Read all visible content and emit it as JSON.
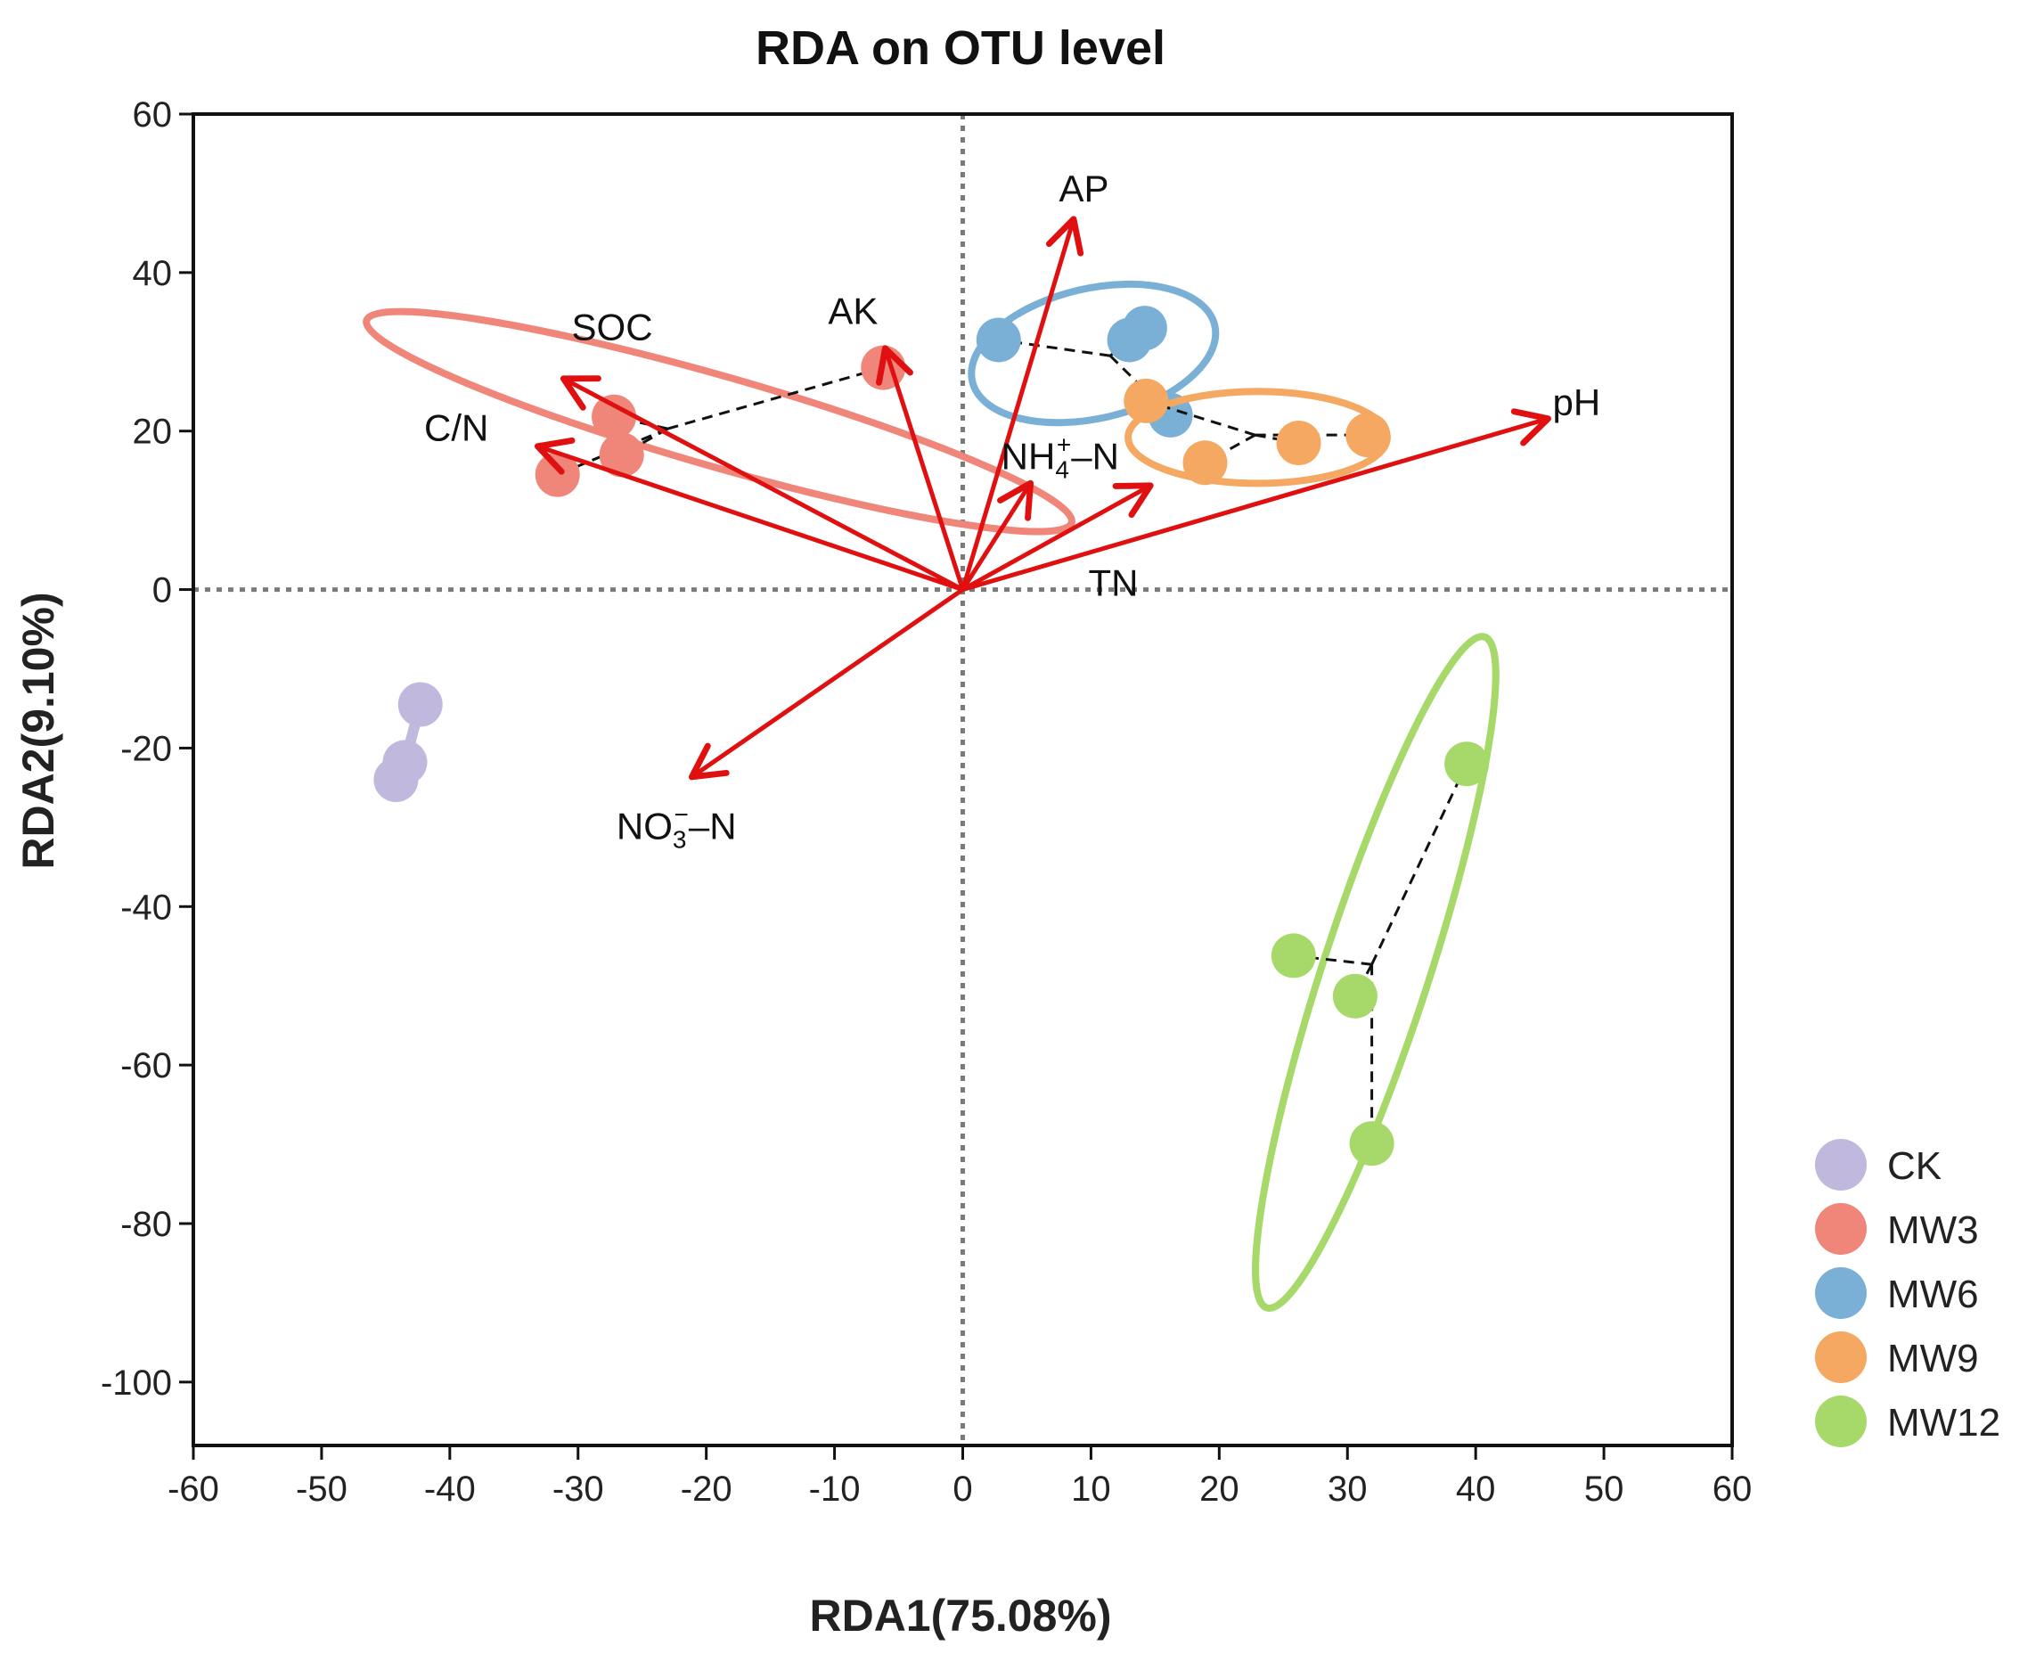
{
  "chart_data": {
    "type": "scatter",
    "title": "RDA on OTU level",
    "xlabel": "RDA1(75.08%)",
    "ylabel": "RDA2(9.10%)",
    "xlim": [
      -60,
      60
    ],
    "ylim": [
      -108,
      60
    ],
    "xticks": [
      -60,
      -50,
      -40,
      -30,
      -20,
      -10,
      0,
      10,
      20,
      30,
      40,
      50,
      60
    ],
    "yticks": [
      60,
      40,
      20,
      0,
      -20,
      -40,
      -60,
      -80,
      -100
    ],
    "reference_lines": {
      "x": 0,
      "y": 0,
      "style": "dotted"
    },
    "legend_position": "right-bottom",
    "series": [
      {
        "name": "CK",
        "color": "#c0b8dd",
        "points": [
          [
            -42.3,
            -14.5
          ],
          [
            -43.5,
            -21.8
          ],
          [
            -44.2,
            -24.0
          ]
        ],
        "ellipse": null
      },
      {
        "name": "MW3",
        "color": "#f0857a",
        "points": [
          [
            -6.2,
            28.0
          ],
          [
            -27.2,
            21.8
          ],
          [
            -26.6,
            17.0
          ],
          [
            -31.6,
            14.5
          ]
        ],
        "centroid": [
          -23.0,
          20.3
        ],
        "ellipse": {
          "center": [
            -19.0,
            21.2
          ],
          "rx": 28.6,
          "ry": 5.7,
          "angle": 16
        }
      },
      {
        "name": "MW6",
        "color": "#7ab0d6",
        "points": [
          [
            2.8,
            31.5
          ],
          [
            13.0,
            31.5
          ],
          [
            14.2,
            33.0
          ],
          [
            16.2,
            22.0
          ]
        ],
        "centroid": [
          11.5,
          29.5
        ],
        "ellipse": {
          "center": [
            10.2,
            29.8
          ],
          "rx": 9.7,
          "ry": 8.2,
          "angle": -13
        }
      },
      {
        "name": "MW9",
        "color": "#f5a862",
        "points": [
          [
            14.3,
            23.8
          ],
          [
            18.9,
            16.0
          ],
          [
            26.2,
            18.5
          ],
          [
            31.6,
            19.5
          ]
        ],
        "centroid": [
          22.8,
          19.5
        ],
        "ellipse": {
          "center": [
            23.0,
            19.2
          ],
          "rx": 10.1,
          "ry": 5.8,
          "angle": 0
        }
      },
      {
        "name": "MW12",
        "color": "#a6d96a",
        "points": [
          [
            39.3,
            -22.0
          ],
          [
            25.8,
            -46.2
          ],
          [
            30.6,
            -51.3
          ],
          [
            31.9,
            -69.9
          ]
        ],
        "centroid": [
          31.9,
          -47.3
        ],
        "ellipse": {
          "center": [
            32.2,
            -48.3
          ],
          "rx": 27.5,
          "ry": 6.7,
          "angle": -72
        }
      }
    ],
    "arrows": [
      {
        "name": "pH",
        "x": 45.5,
        "y": 21.5
      },
      {
        "name": "AP",
        "x": 8.6,
        "y": 46.5
      },
      {
        "name": "AK",
        "x": -6.0,
        "y": 30.2
      },
      {
        "name": "SOC",
        "x": -31.0,
        "y": 26.5
      },
      {
        "name": "C/N",
        "x": -33.0,
        "y": 18.0
      },
      {
        "name": "NH4+-N",
        "x": 5.2,
        "y": 13.2
      },
      {
        "name": "TN",
        "x": 14.5,
        "y": 13.0
      },
      {
        "name": "NO3--N",
        "x": -21.0,
        "y": -23.5
      }
    ],
    "arrow_labels": [
      {
        "name": "pH",
        "text": "pH",
        "at": [
          46.0,
          22.0
        ]
      },
      {
        "name": "AP",
        "text": "AP",
        "at": [
          7.5,
          49.0
        ]
      },
      {
        "name": "AK",
        "text": "AK",
        "at": [
          -10.5,
          33.5
        ]
      },
      {
        "name": "SOC",
        "text": "SOC",
        "at": [
          -30.5,
          31.5
        ]
      },
      {
        "name": "C/N",
        "text": "C/N",
        "at": [
          -42.0,
          18.8
        ]
      },
      {
        "name": "NH4+-N",
        "text": "NH4⁺–N",
        "base": "NH",
        "sub": "4",
        "sup": "+",
        "tail": "–N",
        "at": [
          3.0,
          15.2
        ]
      },
      {
        "name": "TN",
        "text": "TN",
        "at": [
          9.8,
          -0.8
        ]
      },
      {
        "name": "NO3--N",
        "text": "NO3⁻–N",
        "base": "NO",
        "sub": "3",
        "sup": "−",
        "tail": "–N",
        "at": [
          -27.0,
          -31.5
        ]
      }
    ],
    "arrow_color": "#e01010"
  }
}
